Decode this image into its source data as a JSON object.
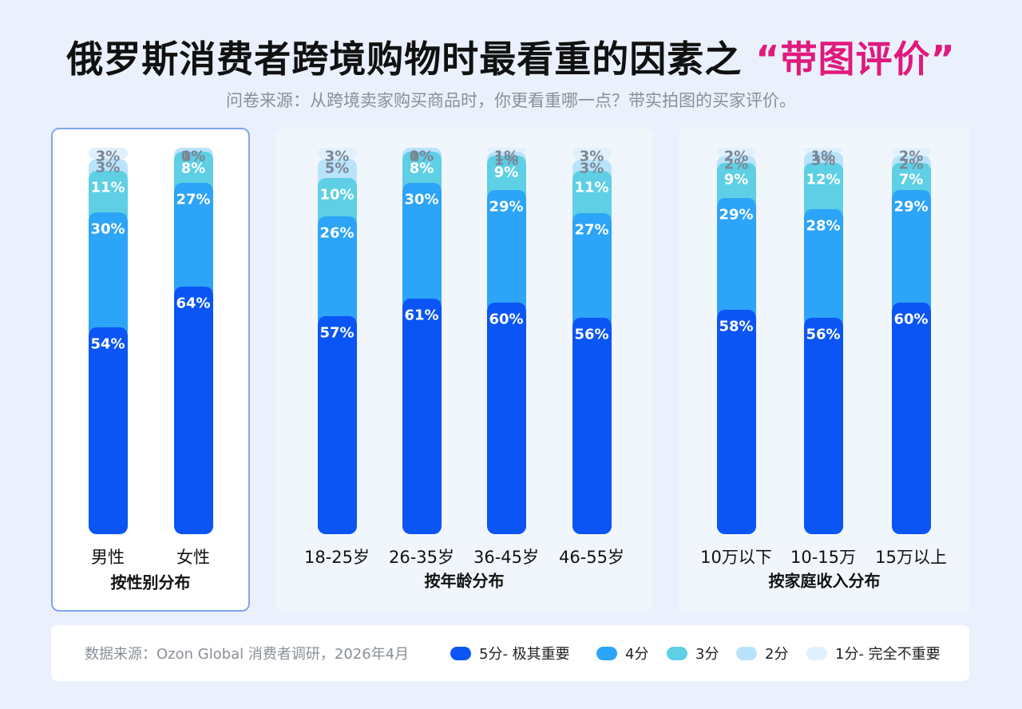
{
  "header": {
    "title_main": "俄罗斯消费者跨境购物时最看重的因素之",
    "title_highlight": "“带图评价”",
    "subtitle": "问卷来源：从跨境卖家购买商品时，你更看重哪一点？带实拍图的买家评价。"
  },
  "footer": {
    "source": "数据来源：Ozon Global 消费者调研，2026年4月"
  },
  "colors": {
    "s5": "#0a55f3",
    "s4": "#2ca4f7",
    "s3": "#5ecfe4",
    "s2": "#b9e3fb",
    "s1": "#e0f1fd",
    "highlight": "#e0197d"
  },
  "chart_data": {
    "type": "bar",
    "stacked": true,
    "unit": "%",
    "legend": [
      "5分- 极其重要",
      "4分",
      "3分",
      "2分",
      "1分- 完全不重要"
    ],
    "legend_position": "bottom",
    "groups": [
      {
        "title": "按性别分布",
        "categories": [
          "男性",
          "女性"
        ],
        "series": [
          {
            "name": "5分- 极其重要",
            "values": [
              54,
              64
            ]
          },
          {
            "name": "4分",
            "values": [
              30,
              27
            ]
          },
          {
            "name": "3分",
            "values": [
              11,
              8
            ]
          },
          {
            "name": "2分",
            "values": [
              3,
              1
            ]
          },
          {
            "name": "1分- 完全不重要",
            "values": [
              3,
              0
            ]
          }
        ]
      },
      {
        "title": "按年龄分布",
        "categories": [
          "18-25岁",
          "26-35岁",
          "36-45岁",
          "46-55岁"
        ],
        "series": [
          {
            "name": "5分- 极其重要",
            "values": [
              57,
              61,
              60,
              56
            ]
          },
          {
            "name": "4分",
            "values": [
              26,
              30,
              29,
              27
            ]
          },
          {
            "name": "3分",
            "values": [
              10,
              8,
              9,
              11
            ]
          },
          {
            "name": "2分",
            "values": [
              5,
              1,
              1,
              3
            ]
          },
          {
            "name": "1分- 完全不重要",
            "values": [
              3,
              0,
              1,
              3
            ]
          }
        ]
      },
      {
        "title": "按家庭收入分布",
        "categories": [
          "10万以下",
          "10-15万",
          "15万以上"
        ],
        "series": [
          {
            "name": "5分- 极其重要",
            "values": [
              58,
              56,
              60
            ]
          },
          {
            "name": "4分",
            "values": [
              29,
              28,
              29
            ]
          },
          {
            "name": "3分",
            "values": [
              9,
              12,
              7
            ]
          },
          {
            "name": "2分",
            "values": [
              2,
              3,
              2
            ]
          },
          {
            "name": "1分- 完全不重要",
            "values": [
              2,
              1,
              2
            ]
          }
        ]
      }
    ]
  }
}
